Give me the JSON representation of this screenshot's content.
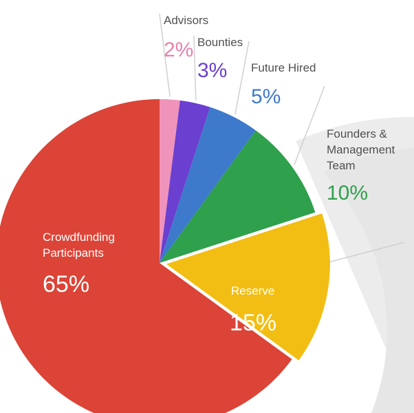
{
  "chart_data": {
    "type": "pie",
    "title": "",
    "slices": [
      {
        "label": "Advisors",
        "value": 2,
        "value_label": "2%",
        "color": "#F093BB",
        "label_color": "#E880AD"
      },
      {
        "label": "Bounties",
        "value": 3,
        "value_label": "3%",
        "color": "#6B3FCF",
        "label_color": "#6B3FCF"
      },
      {
        "label": "Future Hired",
        "value": 5,
        "value_label": "5%",
        "color": "#3D7ACB",
        "label_color": "#3D7ACB"
      },
      {
        "label": "Founders & Management Team",
        "label_lines": [
          "Founders &",
          "Management",
          "Team"
        ],
        "value": 10,
        "value_label": "10%",
        "color": "#2FA04C",
        "label_color": "#2FA04C"
      },
      {
        "label": "Reserve",
        "value": 15,
        "value_label": "15%",
        "color": "#F2BE13",
        "label_color": "#ffffff"
      },
      {
        "label": "Crowdfunding Participants",
        "label_lines": [
          "Crowdfunding",
          "Participants"
        ],
        "value": 65,
        "value_label": "65%",
        "color": "#DB4437",
        "label_color": "#ffffff"
      }
    ],
    "legend": "none",
    "background_colors": {
      "decorative_arcs": "#E4E4E4",
      "leader_lines": "#D0D0D0"
    }
  }
}
